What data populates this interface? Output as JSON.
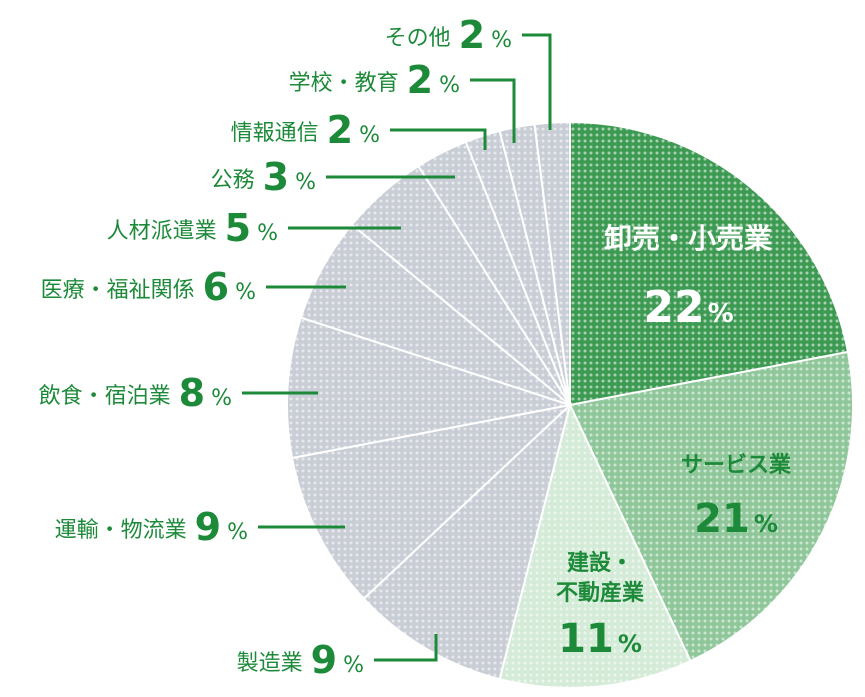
{
  "chart_data": {
    "type": "pie",
    "unit": "%",
    "slices": [
      {
        "name": "卸売・小売業",
        "value": 22,
        "color": "#3d9a52"
      },
      {
        "name": "サービス業",
        "value": 21,
        "color": "#8fc79a"
      },
      {
        "name": "建設・不動産業",
        "value": 11,
        "color": "#d4ebd7"
      },
      {
        "name": "製造業",
        "value": 9,
        "color": "#c9ced6"
      },
      {
        "name": "運輸・物流業",
        "value": 9,
        "color": "#c9ced6"
      },
      {
        "name": "飲食・宿泊業",
        "value": 8,
        "color": "#c9ced6"
      },
      {
        "name": "医療・福祉関係",
        "value": 6,
        "color": "#c9ced6"
      },
      {
        "name": "人材派遣業",
        "value": 5,
        "color": "#c9ced6"
      },
      {
        "name": "公務",
        "value": 3,
        "color": "#c9ced6"
      },
      {
        "name": "情報通信",
        "value": 2,
        "color": "#c9ced6"
      },
      {
        "name": "学校・教育",
        "value": 2,
        "color": "#c9ced6"
      },
      {
        "name": "その他",
        "value": 2,
        "color": "#c9ced6"
      }
    ],
    "label_color": "#1d8a3a"
  }
}
